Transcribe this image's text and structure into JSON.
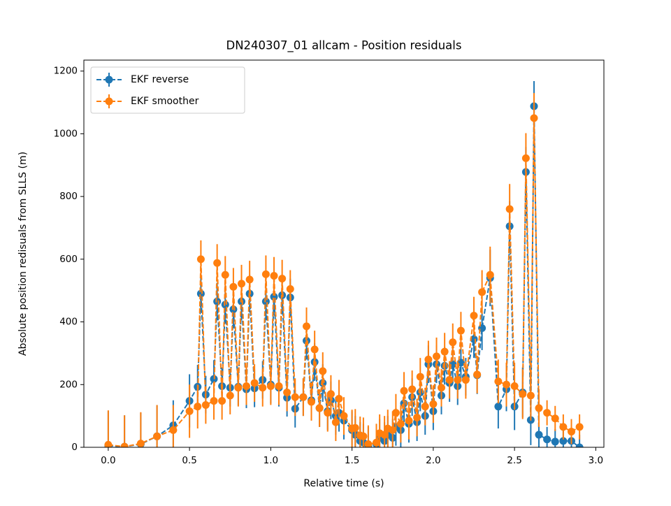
{
  "chart_data": {
    "type": "errorbar",
    "title": "DN240307_01 allcam - Position residuals",
    "xlabel": "Relative time (s)",
    "ylabel": "Absolute position redisuals from SLLS (m)",
    "x": [
      0.0,
      0.1,
      0.2,
      0.3,
      0.4,
      0.5,
      0.55,
      0.57,
      0.6,
      0.65,
      0.67,
      0.7,
      0.72,
      0.75,
      0.77,
      0.8,
      0.82,
      0.85,
      0.87,
      0.9,
      0.95,
      0.97,
      1.0,
      1.02,
      1.05,
      1.07,
      1.1,
      1.12,
      1.15,
      1.2,
      1.22,
      1.25,
      1.27,
      1.3,
      1.32,
      1.35,
      1.37,
      1.4,
      1.42,
      1.45,
      1.5,
      1.52,
      1.55,
      1.57,
      1.6,
      1.65,
      1.67,
      1.7,
      1.72,
      1.75,
      1.77,
      1.8,
      1.82,
      1.85,
      1.87,
      1.9,
      1.92,
      1.95,
      1.97,
      2.0,
      2.02,
      2.05,
      2.07,
      2.1,
      2.12,
      2.15,
      2.17,
      2.2,
      2.25,
      2.27,
      2.3,
      2.35,
      2.4,
      2.45,
      2.47,
      2.5,
      2.55,
      2.57,
      2.6,
      2.62,
      2.65,
      2.7,
      2.75,
      2.8,
      2.85,
      2.9
    ],
    "series": [
      {
        "name": "EKF reverse",
        "color": "#1f77b4",
        "values": [
          5,
          2,
          10,
          35,
          70,
          148,
          193,
          490,
          168,
          218,
          465,
          195,
          455,
          190,
          440,
          193,
          465,
          185,
          490,
          188,
          215,
          465,
          200,
          480,
          190,
          485,
          158,
          478,
          123,
          160,
          340,
          150,
          272,
          125,
          205,
          115,
          150,
          100,
          110,
          85,
          55,
          40,
          20,
          15,
          5,
          10,
          30,
          20,
          40,
          30,
          65,
          55,
          140,
          75,
          160,
          80,
          175,
          100,
          265,
          115,
          265,
          165,
          260,
          205,
          265,
          195,
          270,
          225,
          345,
          230,
          380,
          540,
          130,
          185,
          705,
          130,
          175,
          878,
          87,
          1088,
          40,
          25,
          18,
          20,
          20,
          0
        ],
        "errors": [
          110,
          100,
          100,
          100,
          80,
          85,
          70,
          60,
          60,
          60,
          60,
          60,
          60,
          60,
          60,
          60,
          60,
          60,
          60,
          60,
          60,
          60,
          60,
          60,
          60,
          60,
          60,
          60,
          60,
          60,
          60,
          60,
          60,
          60,
          60,
          60,
          60,
          60,
          60,
          60,
          60,
          60,
          60,
          60,
          60,
          60,
          60,
          60,
          60,
          60,
          60,
          60,
          60,
          60,
          60,
          60,
          60,
          60,
          60,
          60,
          60,
          60,
          60,
          60,
          60,
          60,
          60,
          60,
          60,
          60,
          70,
          90,
          70,
          70,
          80,
          75,
          80,
          80,
          80,
          80,
          60,
          40,
          40,
          40,
          40,
          40
        ]
      },
      {
        "name": "EKF smoother",
        "color": "#ff7f0e",
        "values": [
          8,
          2,
          12,
          35,
          55,
          115,
          130,
          600,
          135,
          148,
          588,
          148,
          550,
          165,
          512,
          190,
          522,
          195,
          535,
          205,
          190,
          552,
          195,
          547,
          195,
          538,
          175,
          505,
          160,
          160,
          386,
          145,
          312,
          125,
          243,
          110,
          170,
          80,
          155,
          100,
          60,
          62,
          38,
          35,
          10,
          15,
          45,
          40,
          60,
          55,
          110,
          75,
          180,
          85,
          185,
          95,
          225,
          130,
          280,
          138,
          290,
          190,
          305,
          215,
          335,
          215,
          372,
          215,
          420,
          232,
          495,
          550,
          210,
          200,
          760,
          195,
          170,
          922,
          165,
          1050,
          125,
          110,
          92,
          65,
          50,
          65
        ],
        "errors": [
          110,
          100,
          100,
          100,
          80,
          85,
          70,
          60,
          60,
          60,
          60,
          60,
          60,
          60,
          60,
          60,
          60,
          60,
          60,
          60,
          60,
          60,
          60,
          60,
          60,
          60,
          60,
          60,
          60,
          60,
          60,
          60,
          60,
          60,
          60,
          60,
          60,
          60,
          60,
          60,
          60,
          60,
          60,
          60,
          60,
          60,
          60,
          60,
          60,
          60,
          60,
          60,
          60,
          60,
          60,
          60,
          60,
          60,
          60,
          60,
          60,
          60,
          60,
          60,
          60,
          60,
          60,
          60,
          60,
          60,
          70,
          90,
          70,
          70,
          80,
          75,
          80,
          80,
          80,
          80,
          60,
          40,
          40,
          40,
          40,
          40
        ]
      }
    ],
    "xlim": [
      -0.15,
      3.05
    ],
    "xticks": [
      {
        "value": 0,
        "label": "0.0"
      },
      {
        "value": 0.5,
        "label": "0.5"
      },
      {
        "value": 1,
        "label": "1.0"
      },
      {
        "value": 1.5,
        "label": "1.5"
      },
      {
        "value": 2,
        "label": "2.0"
      },
      {
        "value": 2.5,
        "label": "2.5"
      },
      {
        "value": 3,
        "label": "3.0"
      }
    ],
    "ylim": [
      0,
      1235
    ],
    "yticks": [
      0,
      200,
      400,
      600,
      800,
      1000,
      1200
    ],
    "legend": "upper left"
  }
}
